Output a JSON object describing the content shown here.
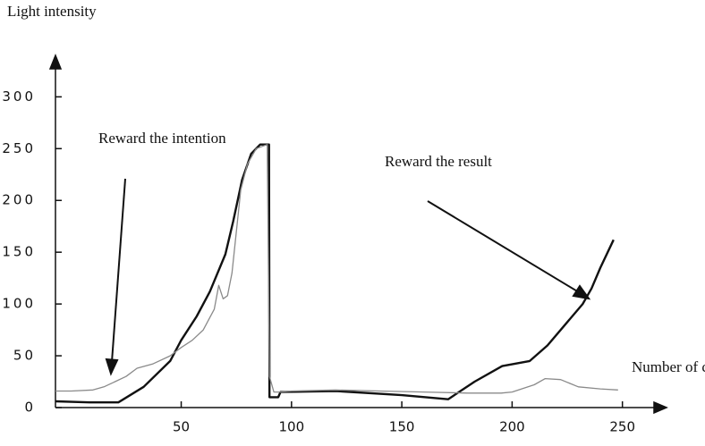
{
  "chart_data": {
    "type": "line",
    "y_label": "Light intensity",
    "x_label": "Number of cycles",
    "annotations": [
      "Reward the intention",
      "Reward the result"
    ],
    "xlim": [
      -7,
      270
    ],
    "ylim": [
      0,
      340
    ],
    "xticks": [
      50,
      100,
      150,
      200,
      250
    ],
    "yticks": [
      0,
      50,
      100,
      150,
      200,
      250,
      300
    ],
    "series": [
      {
        "color": "#111111",
        "width": 2.4,
        "x": [
          -7,
          8.5,
          21.5,
          33,
          45,
          50,
          57,
          63,
          70,
          73.6,
          77.6,
          81.7,
          85.8,
          89.8,
          90,
          94,
          95,
          120,
          150,
          171,
          183,
          195.5,
          208,
          216,
          224,
          232,
          236,
          240,
          246
        ],
        "values": [
          6,
          5,
          5,
          20,
          45,
          65,
          88,
          112,
          148,
          180,
          220,
          245,
          254,
          254,
          10,
          10,
          15,
          16,
          12,
          8,
          25,
          40,
          45,
          60,
          80,
          100,
          115,
          135,
          162
        ]
      },
      {
        "color": "#8a8a8a",
        "width": 1.3,
        "x": [
          -7,
          0,
          10,
          15,
          20,
          25,
          30,
          37,
          45,
          50,
          55,
          60,
          65,
          67,
          69,
          71,
          73,
          75,
          77,
          80,
          84,
          89,
          90,
          92,
          95,
          100,
          120,
          140,
          160,
          180,
          195,
          200,
          210,
          215,
          222,
          230,
          240,
          248
        ],
        "values": [
          16,
          16,
          17,
          20,
          25,
          30,
          38,
          42,
          50,
          58,
          65,
          75,
          95,
          118,
          105,
          108,
          130,
          170,
          210,
          235,
          250,
          254,
          30,
          15,
          15,
          16,
          17,
          16,
          15,
          14,
          14,
          15,
          22,
          28,
          27,
          20,
          18,
          17
        ]
      }
    ]
  }
}
